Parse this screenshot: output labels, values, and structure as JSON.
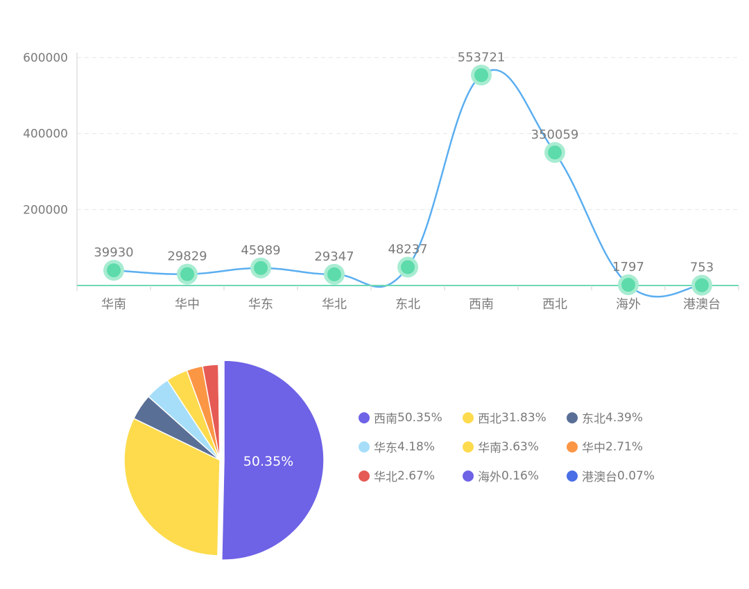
{
  "chart_data": [
    {
      "type": "line",
      "categories": [
        "华南",
        "华中",
        "华东",
        "华北",
        "东北",
        "西南",
        "西北",
        "海外",
        "港澳台"
      ],
      "values": [
        39930,
        29829,
        45989,
        29347,
        48237,
        553721,
        350059,
        1797,
        753
      ],
      "ylim": [
        0,
        600000
      ],
      "yticks": [
        "200000",
        "400000",
        "600000"
      ],
      "grid": true,
      "colors": {
        "line": "#5aaef0",
        "marker": "#5ddbaa",
        "marker_halo": "#a8ecd2",
        "axis": "#6cd9b4"
      }
    },
    {
      "type": "pie",
      "labels": [
        "西南",
        "西北",
        "东北",
        "华东",
        "华南",
        "华中",
        "华北",
        "海外",
        "港澳台"
      ],
      "percentages": [
        50.35,
        31.83,
        4.39,
        4.18,
        3.63,
        2.71,
        2.67,
        0.16,
        0.07
      ],
      "percent_labels": [
        "50.35%",
        "31.83%",
        "4.39%",
        "4.18%",
        "3.63%",
        "2.71%",
        "2.67%",
        "0.16%",
        "0.07%"
      ],
      "slice_label": "50.35%",
      "colors": [
        "#6e62e6",
        "#fddb4c",
        "#5a6f96",
        "#a6def9",
        "#fddb4c",
        "#fb9645",
        "#e65a55",
        "#6e62e6",
        "#4a6ee6"
      ],
      "legend_placement": "right"
    }
  ]
}
